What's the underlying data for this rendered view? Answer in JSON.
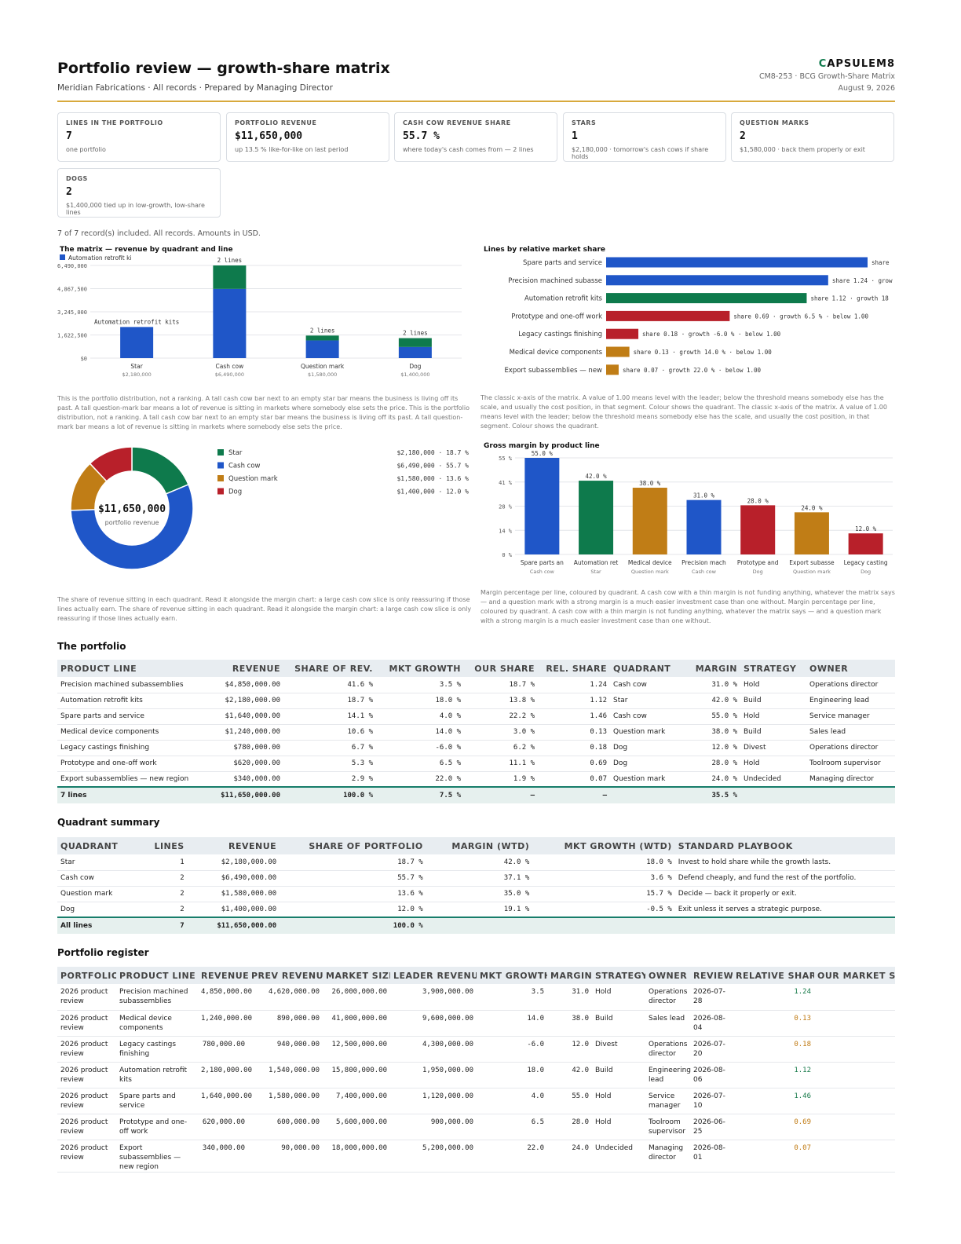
{
  "header": {
    "title": "Portfolio review — growth-share matrix",
    "subtitle": "Meridian Fabrications · All records · Prepared by Managing Director",
    "brand_mark": "C",
    "brand_rest": "APSULEM8",
    "doc_ref": "CM8-253 · BCG Growth-Share Matrix",
    "date": "August 9, 2026"
  },
  "kpis": [
    {
      "label": "LINES IN THE PORTFOLIO",
      "value": "7",
      "sub": "one portfolio"
    },
    {
      "label": "PORTFOLIO REVENUE",
      "value": "$11,650,000",
      "sub": "up 13.5 % like-for-like on last period"
    },
    {
      "label": "CASH COW REVENUE SHARE",
      "value": "55.7 %",
      "sub": "where today's cash comes from — 2 lines"
    },
    {
      "label": "STARS",
      "value": "1",
      "sub": "$2,180,000 · tomorrow's cash cows if share holds"
    },
    {
      "label": "QUESTION MARKS",
      "value": "2",
      "sub": "$1,580,000 · back them properly or exit"
    },
    {
      "label": "DOGS",
      "value": "2",
      "sub": "$1,400,000 tied up in low-growth, low-share lines"
    }
  ],
  "records_note": "7 of 7 record(s) included. All records. Amounts in USD.",
  "colors": {
    "star": "#0e7a4c",
    "cash_cow": "#1f56c8",
    "question_mark": "#c07d16",
    "dog": "#b8202a"
  },
  "matrix_chart": {
    "title": "The matrix — revenue by quadrant and line",
    "legend": "Automation retrofit ki",
    "note": "This is the portfolio distribution, not a ranking. A tall cash cow bar next to an empty star bar means the business is living off its past. A tall question-mark bar means a lot of revenue is sitting in markets where somebody else sets the price. This is the portfolio distribution, not a ranking. A tall cash cow bar next to an empty star bar means the business is living off its past. A tall question-mark bar means a lot of revenue is sitting in markets where somebody else sets the price."
  },
  "share_chart": {
    "title": "Lines by relative market share",
    "note": "The classic x-axis of the matrix. A value of 1.00 means level with the leader; below the threshold means somebody else has the scale, and usually the cost position, in that segment. Colour shows the quadrant. The classic x-axis of the matrix. A value of 1.00 means level with the leader; below the threshold means somebody else has the scale, and usually the cost position, in that segment. Colour shows the quadrant."
  },
  "donut_chart": {
    "center_value": "$11,650,000",
    "center_label": "portfolio revenue",
    "note": "The share of revenue sitting in each quadrant. Read it alongside the margin chart: a large cash cow slice is only reassuring if those lines actually earn. The share of revenue sitting in each quadrant. Read it alongside the margin chart: a large cash cow slice is only reassuring if those lines actually earn."
  },
  "margin_chart": {
    "title": "Gross margin by product line",
    "note": "Margin percentage per line, coloured by quadrant. A cash cow with a thin margin is not funding anything, whatever the matrix says — and a question mark with a strong margin is a much easier investment case than one without. Margin percentage per line, coloured by quadrant. A cash cow with a thin margin is not funding anything, whatever the matrix says — and a question mark with a strong margin is a much easier investment case than one without."
  },
  "chart_data": [
    {
      "type": "bar",
      "stacked": true,
      "categories": [
        "Star",
        "Cash cow",
        "Question mark",
        "Dog"
      ],
      "category_totals": [
        "$2,180,000",
        "$6,490,000",
        "$1,580,000",
        "$1,400,000"
      ],
      "bar_labels": [
        "Automation retrofit kits",
        "2 lines",
        "2 lines",
        "2 lines"
      ],
      "ticks": [
        "$0",
        "$1,622,500",
        "$3,245,000",
        "$4,867,500",
        "$6,490,000"
      ],
      "ylim": [
        0,
        6490000
      ],
      "stacks": [
        [
          {
            "value": 2180000,
            "color": "#1f56c8"
          }
        ],
        [
          {
            "value": 4850000,
            "color": "#1f56c8"
          },
          {
            "value": 1640000,
            "color": "#0e7a4c"
          }
        ],
        [
          {
            "value": 1240000,
            "color": "#1f56c8"
          },
          {
            "value": 340000,
            "color": "#0e7a4c"
          }
        ],
        [
          {
            "value": 780000,
            "color": "#1f56c8"
          },
          {
            "value": 620000,
            "color": "#0e7a4c"
          }
        ]
      ]
    },
    {
      "type": "bar",
      "orientation": "horizontal",
      "categories": [
        "Spare parts and service",
        "Precision machined subasse",
        "Automation retrofit kits",
        "Prototype and one-off work",
        "Legacy castings finishing",
        "Medical device components",
        "Export subassemblies — new"
      ],
      "values": [
        1.46,
        1.24,
        1.12,
        0.69,
        0.18,
        0.13,
        0.07
      ],
      "labels": [
        "share",
        "share 1.24 · grow",
        "share 1.12 · growth 18",
        "share 0.69 · growth 6.5 % · below 1.00",
        "share 0.18 · growth -6.0 % · below 1.00",
        "share 0.13 · growth 14.0 % · below 1.00",
        "share 0.07 · growth 22.0 % · below 1.00"
      ],
      "colors": [
        "#1f56c8",
        "#1f56c8",
        "#0e7a4c",
        "#b8202a",
        "#b8202a",
        "#c07d16",
        "#c07d16"
      ],
      "xlim": [
        0,
        1.46
      ]
    },
    {
      "type": "pie",
      "donut": true,
      "slices": [
        {
          "name": "Star",
          "value": 2180000,
          "label": "$2,180,000 · 18.7 %",
          "color": "#0e7a4c"
        },
        {
          "name": "Cash cow",
          "value": 6490000,
          "label": "$6,490,000 · 55.7 %",
          "color": "#1f56c8"
        },
        {
          "name": "Question mark",
          "value": 1580000,
          "label": "$1,580,000 · 13.6 %",
          "color": "#c07d16"
        },
        {
          "name": "Dog",
          "value": 1400000,
          "label": "$1,400,000 · 12.0 %",
          "color": "#b8202a"
        }
      ]
    },
    {
      "type": "bar",
      "categories": [
        "Spare parts an",
        "Automation ret",
        "Medical device",
        "Precision mach",
        "Prototype and",
        "Export subasse",
        "Legacy casting"
      ],
      "subcategories": [
        "Cash cow",
        "Star",
        "Question mark",
        "Cash cow",
        "Dog",
        "Question mark",
        "Dog"
      ],
      "values": [
        55.0,
        42.0,
        38.0,
        31.0,
        28.0,
        24.0,
        12.0
      ],
      "value_labels": [
        "55.0 %",
        "42.0 %",
        "38.0 %",
        "31.0 %",
        "28.0 %",
        "24.0 %",
        "12.0 %"
      ],
      "colors": [
        "#1f56c8",
        "#0e7a4c",
        "#c07d16",
        "#1f56c8",
        "#b8202a",
        "#c07d16",
        "#b8202a"
      ],
      "ticks": [
        "0 %",
        "14 %",
        "28 %",
        "41 %",
        "55 %"
      ],
      "ylim": [
        0,
        55
      ]
    }
  ],
  "portfolio_table": {
    "title": "The portfolio",
    "headers": [
      "PRODUCT LINE",
      "REVENUE",
      "SHARE OF REV.",
      "MKT GROWTH",
      "OUR SHARE",
      "REL. SHARE",
      "QUADRANT",
      "MARGIN",
      "STRATEGY",
      "OWNER"
    ],
    "rows": [
      [
        "Precision machined subassemblies",
        "$4,850,000.00",
        "41.6 %",
        "3.5 %",
        "18.7 %",
        "1.24",
        "Cash cow",
        "31.0 %",
        "Hold",
        "Operations director"
      ],
      [
        "Automation retrofit kits",
        "$2,180,000.00",
        "18.7 %",
        "18.0 %",
        "13.8 %",
        "1.12",
        "Star",
        "42.0 %",
        "Build",
        "Engineering lead"
      ],
      [
        "Spare parts and service",
        "$1,640,000.00",
        "14.1 %",
        "4.0 %",
        "22.2 %",
        "1.46",
        "Cash cow",
        "55.0 %",
        "Hold",
        "Service manager"
      ],
      [
        "Medical device components",
        "$1,240,000.00",
        "10.6 %",
        "14.0 %",
        "3.0 %",
        "0.13",
        "Question mark",
        "38.0 %",
        "Build",
        "Sales lead"
      ],
      [
        "Legacy castings finishing",
        "$780,000.00",
        "6.7 %",
        "-6.0 %",
        "6.2 %",
        "0.18",
        "Dog",
        "12.0 %",
        "Divest",
        "Operations director"
      ],
      [
        "Prototype and one-off work",
        "$620,000.00",
        "5.3 %",
        "6.5 %",
        "11.1 %",
        "0.69",
        "Dog",
        "28.0 %",
        "Hold",
        "Toolroom supervisor"
      ],
      [
        "Export subassemblies — new region",
        "$340,000.00",
        "2.9 %",
        "22.0 %",
        "1.9 %",
        "0.07",
        "Question mark",
        "24.0 %",
        "Undecided",
        "Managing director"
      ]
    ],
    "total": [
      "7 lines",
      "$11,650,000.00",
      "100.0 %",
      "7.5 %",
      "—",
      "—",
      "",
      "35.5 %",
      "",
      ""
    ]
  },
  "quadrant_table": {
    "title": "Quadrant summary",
    "headers": [
      "QUADRANT",
      "LINES",
      "REVENUE",
      "SHARE OF PORTFOLIO",
      "MARGIN (WTD)",
      "MKT GROWTH (WTD)",
      "STANDARD PLAYBOOK"
    ],
    "rows": [
      [
        "Star",
        "1",
        "$2,180,000.00",
        "18.7 %",
        "42.0 %",
        "18.0 %",
        "Invest to hold share while the growth lasts."
      ],
      [
        "Cash cow",
        "2",
        "$6,490,000.00",
        "55.7 %",
        "37.1 %",
        "3.6 %",
        "Defend cheaply, and fund the rest of the portfolio."
      ],
      [
        "Question mark",
        "2",
        "$1,580,000.00",
        "13.6 %",
        "35.0 %",
        "15.7 %",
        "Decide — back it properly or exit."
      ],
      [
        "Dog",
        "2",
        "$1,400,000.00",
        "12.0 %",
        "19.1 %",
        "-0.5 %",
        "Exit unless it serves a strategic purpose."
      ]
    ],
    "total": [
      "All lines",
      "7",
      "$11,650,000.00",
      "100.0 %",
      "",
      "",
      ""
    ]
  },
  "register_table": {
    "title": "Portfolio register",
    "headers": [
      "PORTFOLIO",
      "PRODUCT LINE",
      "REVENUE",
      "PREV REVENUE",
      "MARKET SIZE",
      "LEADER REVENUE",
      "MKT GROWTH",
      "MARGIN",
      "STRATEGY",
      "OWNER",
      "REVIEW",
      "RELATIVE SHARE",
      "OUR MARKET SHA"
    ],
    "rows": [
      [
        "2026 product review",
        "Precision machined subassemblies",
        "4,850,000.00",
        "4,620,000.00",
        "26,000,000.00",
        "3,900,000.00",
        "3.5",
        "31.0",
        "Hold",
        "Operations director",
        "2026-07-28",
        "1.24",
        ""
      ],
      [
        "2026 product review",
        "Medical device components",
        "1,240,000.00",
        "890,000.00",
        "41,000,000.00",
        "9,600,000.00",
        "14.0",
        "38.0",
        "Build",
        "Sales lead",
        "2026-08-04",
        "0.13",
        ""
      ],
      [
        "2026 product review",
        "Legacy castings finishing",
        "780,000.00",
        "940,000.00",
        "12,500,000.00",
        "4,300,000.00",
        "-6.0",
        "12.0",
        "Divest",
        "Operations director",
        "2026-07-20",
        "0.18",
        ""
      ],
      [
        "2026 product review",
        "Automation retrofit kits",
        "2,180,000.00",
        "1,540,000.00",
        "15,800,000.00",
        "1,950,000.00",
        "18.0",
        "42.0",
        "Build",
        "Engineering lead",
        "2026-08-06",
        "1.12",
        ""
      ],
      [
        "2026 product review",
        "Spare parts and service",
        "1,640,000.00",
        "1,580,000.00",
        "7,400,000.00",
        "1,120,000.00",
        "4.0",
        "55.0",
        "Hold",
        "Service manager",
        "2026-07-10",
        "1.46",
        ""
      ],
      [
        "2026 product review",
        "Prototype and one-off work",
        "620,000.00",
        "600,000.00",
        "5,600,000.00",
        "900,000.00",
        "6.5",
        "28.0",
        "Hold",
        "Toolroom supervisor",
        "2026-06-25",
        "0.69",
        ""
      ],
      [
        "2026 product review",
        "Export subassemblies — new region",
        "340,000.00",
        "90,000.00",
        "18,000,000.00",
        "5,200,000.00",
        "22.0",
        "24.0",
        "Undecided",
        "Managing director",
        "2026-08-01",
        "0.07",
        ""
      ]
    ]
  }
}
